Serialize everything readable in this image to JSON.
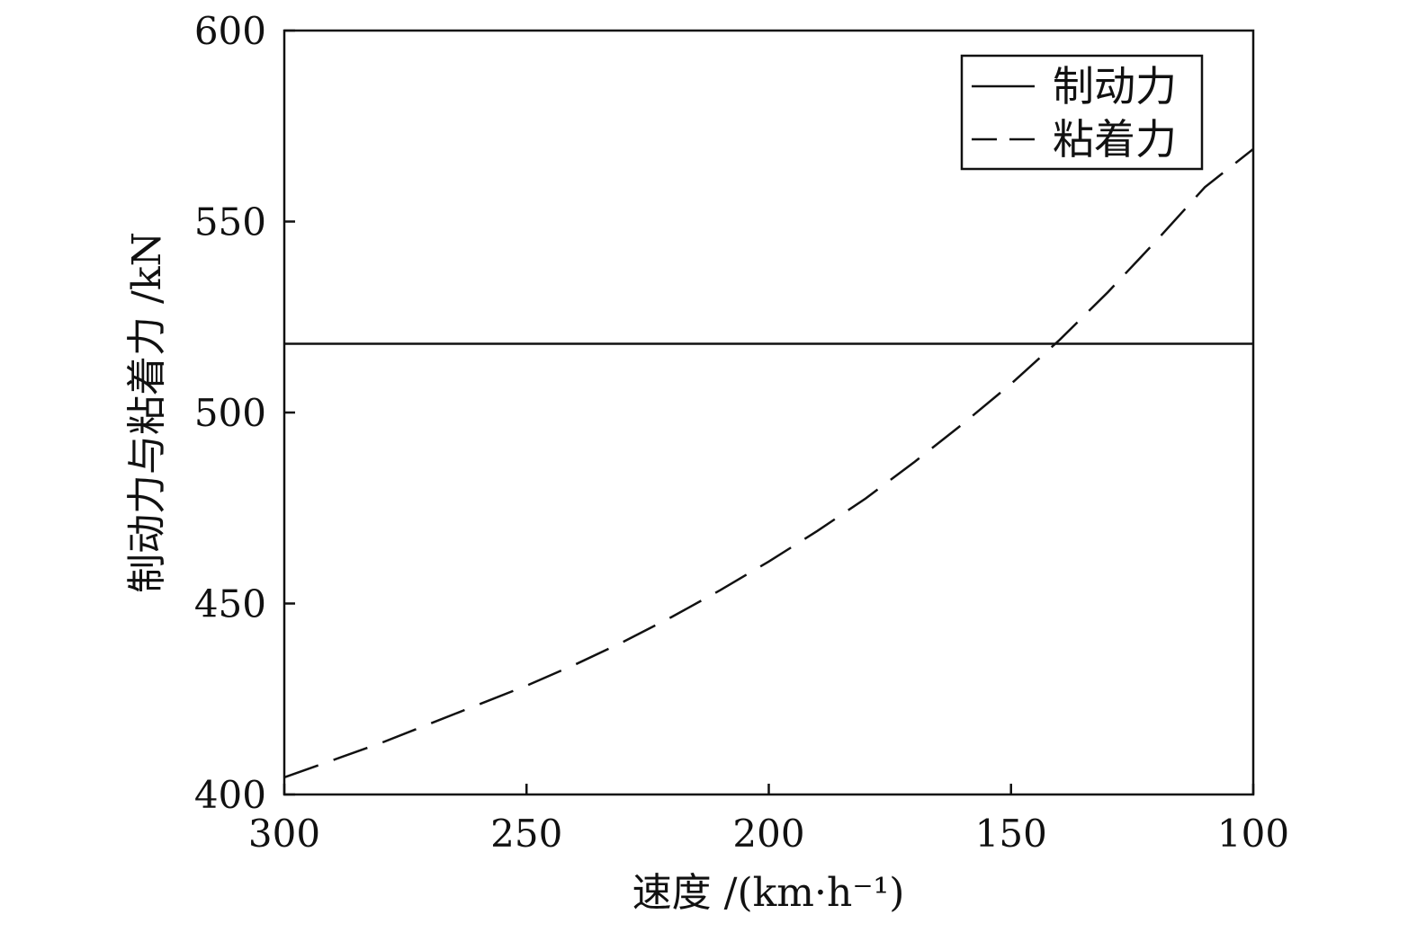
{
  "chart_data": {
    "type": "line",
    "title": "",
    "xlabel": "速度 /(km·h⁻¹)",
    "ylabel": "制动力与粘着力 /kN",
    "xlim": [
      300,
      100
    ],
    "ylim": [
      400,
      600
    ],
    "x_reversed": true,
    "x_ticks": [
      300,
      250,
      200,
      150,
      100
    ],
    "y_ticks": [
      400,
      450,
      500,
      550,
      600
    ],
    "grid": false,
    "legend_position": "top-right",
    "series": [
      {
        "name": "制动力",
        "style": "solid",
        "color": "#111111",
        "x": [
          300,
          250,
          200,
          150,
          100
        ],
        "y": [
          518,
          518,
          518,
          518,
          518
        ]
      },
      {
        "name": "粘着力",
        "style": "dashed",
        "color": "#111111",
        "x": [
          300,
          290,
          280,
          270,
          260,
          250,
          240,
          230,
          220,
          210,
          200,
          190,
          180,
          170,
          160,
          150,
          140,
          130,
          120,
          110,
          100
        ],
        "y": [
          404.5,
          409,
          413.5,
          418.5,
          423.5,
          428.5,
          434,
          440,
          446.5,
          453.5,
          461,
          469,
          477.5,
          487,
          497,
          507.5,
          519,
          531.5,
          545,
          559,
          569
        ]
      }
    ]
  }
}
